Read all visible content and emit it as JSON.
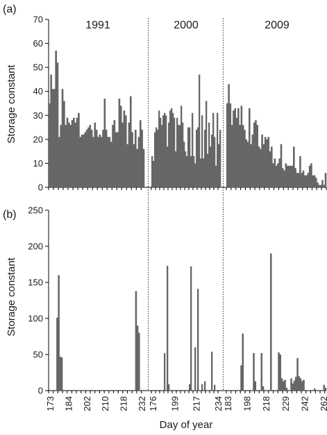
{
  "chart_data": [
    {
      "type": "bar",
      "panel_label": "(a)",
      "ylabel": "Storage constant",
      "ylim": [
        0,
        70
      ],
      "yticks": [
        0,
        10,
        20,
        30,
        40,
        50,
        60,
        70
      ],
      "series_color": "#666666",
      "segments": [
        {
          "label": "1991",
          "values": [
            35,
            47,
            41,
            41,
            57,
            52,
            21,
            26,
            41,
            36,
            26,
            29,
            27,
            26,
            28,
            29,
            27,
            29,
            31,
            21,
            22,
            22,
            23,
            24,
            25,
            26,
            24,
            21,
            27,
            24,
            21,
            22,
            21,
            24,
            37,
            24,
            21,
            21,
            19,
            26,
            28,
            23,
            23,
            37,
            34,
            27,
            32,
            30,
            18,
            27,
            38,
            23,
            18,
            24,
            16,
            21,
            28,
            24,
            16
          ]
        },
        {
          "label": "2000",
          "values": [
            13,
            11,
            23,
            25,
            24,
            32,
            29,
            26,
            30,
            31,
            30,
            17,
            27,
            32,
            33,
            31,
            29,
            15,
            29,
            26,
            26,
            34,
            27,
            19,
            15,
            13,
            25,
            25,
            13,
            31,
            13,
            10,
            24,
            25,
            47,
            12,
            30,
            12,
            24,
            36,
            14,
            27,
            17,
            22,
            31,
            21,
            9,
            31,
            18,
            24
          ]
        },
        {
          "label": "2009",
          "values": [
            35,
            43,
            35,
            26,
            32,
            33,
            29,
            33,
            26,
            34,
            26,
            24,
            20,
            19,
            33,
            18,
            22,
            27,
            28,
            26,
            17,
            16,
            22,
            18,
            21,
            20,
            21,
            15,
            17,
            10,
            12,
            9,
            10,
            12,
            18,
            8,
            7,
            10,
            9,
            9,
            9,
            9,
            17,
            8,
            6,
            6,
            13,
            6,
            7,
            5,
            5,
            6,
            9,
            10,
            5,
            5,
            4,
            2,
            1,
            1,
            3,
            1,
            6
          ]
        }
      ]
    },
    {
      "type": "bar",
      "panel_label": "(b)",
      "ylabel": "Storage constant",
      "ylim": [
        0,
        250
      ],
      "yticks": [
        0,
        50,
        100,
        150,
        200,
        250
      ],
      "xlabel": "Day of year",
      "series_color": "#666666",
      "segments": [
        {
          "label": "1991",
          "xtick_labels": [
            "173",
            "184",
            "202",
            "210",
            "218",
            "232"
          ],
          "values": [
            0,
            0,
            0,
            0,
            0,
            101,
            160,
            47,
            46,
            0,
            0,
            0,
            0,
            0,
            0,
            0,
            0,
            0,
            0,
            0,
            0,
            0,
            0,
            0,
            0,
            0,
            0,
            0,
            0,
            0,
            0,
            0,
            0,
            0,
            0,
            0,
            0,
            0,
            0,
            0,
            0,
            0,
            0,
            0,
            0,
            0,
            0,
            0,
            0,
            0,
            0,
            0,
            0,
            0,
            0,
            0,
            138,
            90,
            80,
            0,
            0,
            0
          ]
        },
        {
          "label": "2000",
          "xtick_labels": [
            "176",
            "199",
            "217",
            "234"
          ],
          "values": [
            0,
            0,
            0,
            0,
            0,
            0,
            0,
            0,
            0,
            52,
            0,
            173,
            9,
            0,
            0,
            0,
            0,
            0,
            0,
            0,
            0,
            0,
            0,
            0,
            0,
            0,
            0,
            9,
            172,
            0,
            0,
            60,
            0,
            141,
            0,
            0,
            9,
            0,
            13,
            0,
            0,
            0,
            0,
            54,
            0,
            8,
            0,
            0,
            0,
            0
          ]
        },
        {
          "label": "2009",
          "xtick_labels": [
            "183",
            "198",
            "218",
            "229",
            "242",
            "262"
          ],
          "values": [
            0,
            0,
            0,
            0,
            0,
            0,
            0,
            0,
            0,
            35,
            79,
            0,
            0,
            0,
            0,
            0,
            0,
            52,
            13,
            0,
            0,
            0,
            52,
            6,
            0,
            0,
            0,
            0,
            190,
            0,
            0,
            0,
            0,
            53,
            50,
            17,
            13,
            15,
            4,
            0,
            0,
            17,
            10,
            14,
            19,
            45,
            20,
            17,
            13,
            15,
            0,
            0,
            0,
            0,
            0,
            0,
            3,
            0,
            0,
            0,
            0,
            0,
            8,
            4
          ]
        }
      ]
    }
  ]
}
